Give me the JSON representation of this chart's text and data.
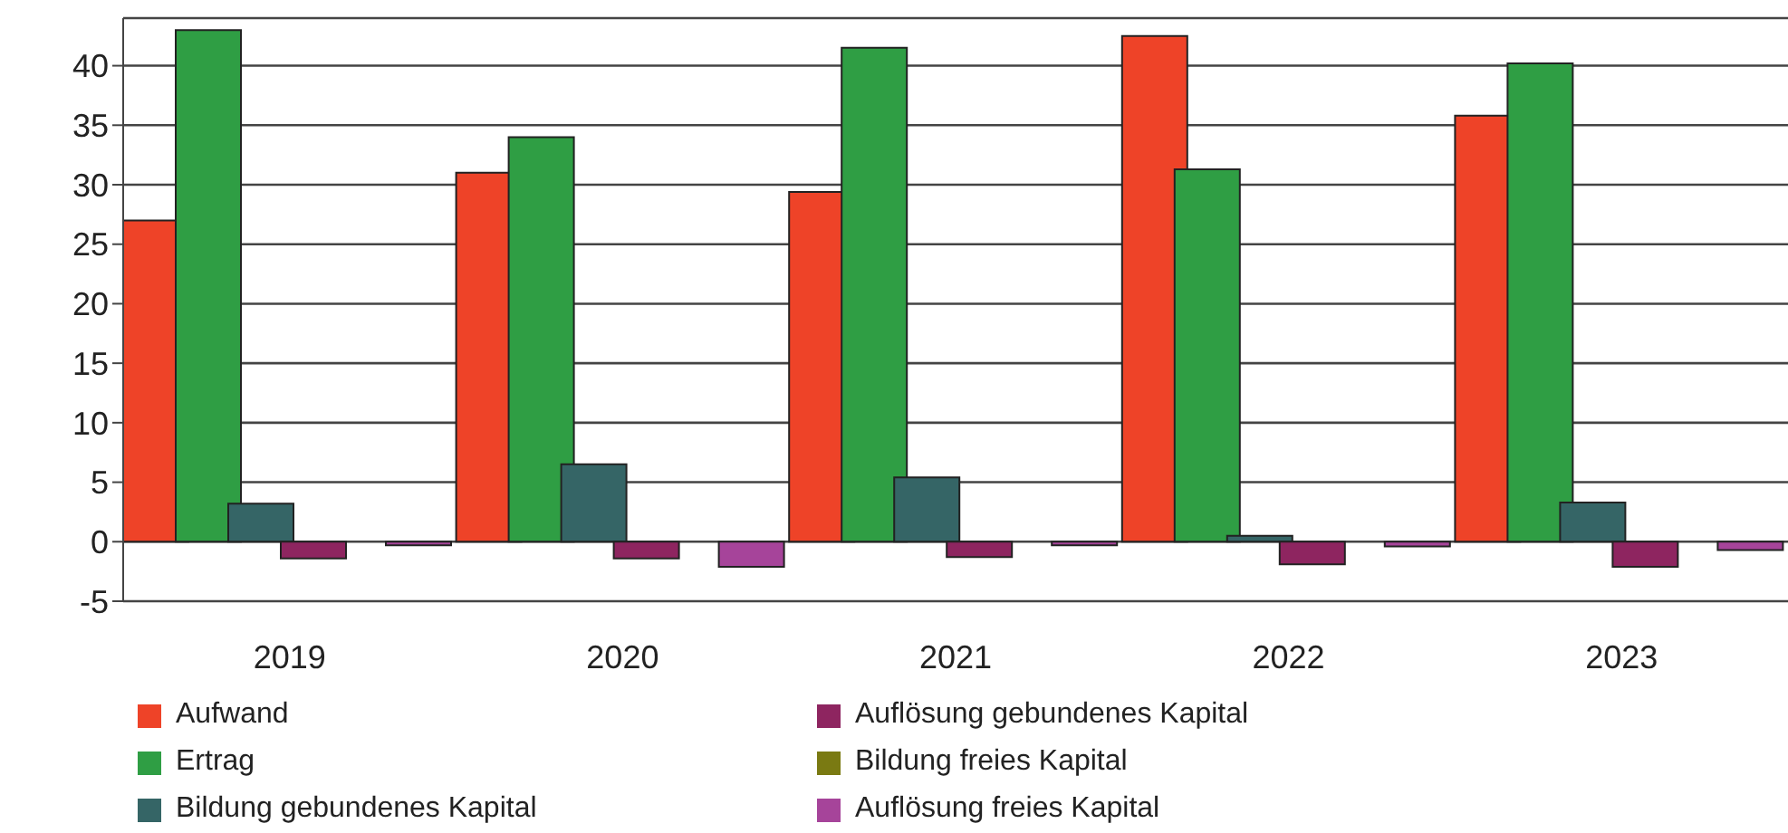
{
  "chart_data": {
    "type": "bar",
    "categories": [
      "2019",
      "2020",
      "2021",
      "2022",
      "2023"
    ],
    "series": [
      {
        "name": "Aufwand",
        "color": "#ee4328",
        "values": [
          27,
          31,
          29.4,
          42.5,
          35.8
        ]
      },
      {
        "name": "Ertrag",
        "color": "#2f9e44",
        "values": [
          43,
          34,
          41.5,
          31.3,
          40.2
        ]
      },
      {
        "name": "Bildung gebundenes Kapital",
        "color": "#356566",
        "values": [
          3.2,
          6.5,
          5.4,
          0.5,
          3.3
        ]
      },
      {
        "name": "Auflösung gebundenes Kapital",
        "color": "#8e2560",
        "values": [
          -1.4,
          -1.4,
          -1.3,
          -1.9,
          -2.1
        ]
      },
      {
        "name": "Bildung freies Kapital",
        "color": "#7a7a12",
        "values": [
          0,
          0,
          0,
          0,
          0
        ]
      },
      {
        "name": "Auflösung freies Kapital",
        "color": "#a6449a",
        "values": [
          -0.3,
          -2.1,
          -0.3,
          -0.4,
          -0.7
        ]
      }
    ],
    "ylim": [
      -5,
      44
    ],
    "yticks": [
      -5,
      0,
      5,
      10,
      15,
      20,
      25,
      30,
      35,
      40
    ],
    "grid": "y",
    "legend": "bottom"
  }
}
